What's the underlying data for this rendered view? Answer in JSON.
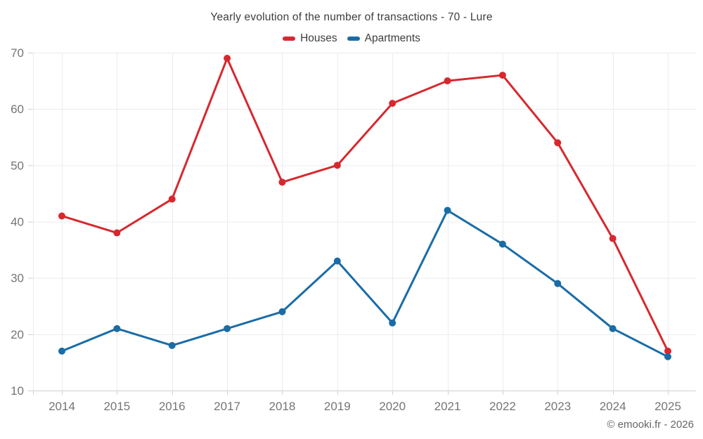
{
  "header": {
    "title": "Yearly evolution of the number of transactions - 70 - Lure"
  },
  "footer": {
    "copyright": "© emooki.fr - 2026"
  },
  "colors": {
    "houses": "#d7282e",
    "apartments": "#1a6ca6",
    "gridline": "#ececec",
    "axis_line": "#cfcfcf",
    "axis_label": "#757575",
    "title_text": "#3d3d3d"
  },
  "chart_data": {
    "type": "line",
    "title": "Yearly evolution of the number of transactions - 70 - Lure",
    "xlabel": "",
    "ylabel": "",
    "categories": [
      "2014",
      "2015",
      "2016",
      "2017",
      "2018",
      "2019",
      "2020",
      "2021",
      "2022",
      "2023",
      "2024",
      "2025"
    ],
    "series": [
      {
        "name": "Houses",
        "color": "#d7282e",
        "values": [
          41,
          38,
          44,
          69,
          47,
          50,
          61,
          65,
          66,
          54,
          37,
          17
        ]
      },
      {
        "name": "Apartments",
        "color": "#1a6ca6",
        "values": [
          17,
          21,
          18,
          21,
          24,
          33,
          22,
          42,
          36,
          29,
          21,
          16
        ]
      }
    ],
    "ylim": [
      10,
      70
    ],
    "y_ticks": [
      10,
      20,
      30,
      40,
      50,
      60,
      70
    ],
    "grid": true,
    "legend_position": "top",
    "annotations": []
  }
}
